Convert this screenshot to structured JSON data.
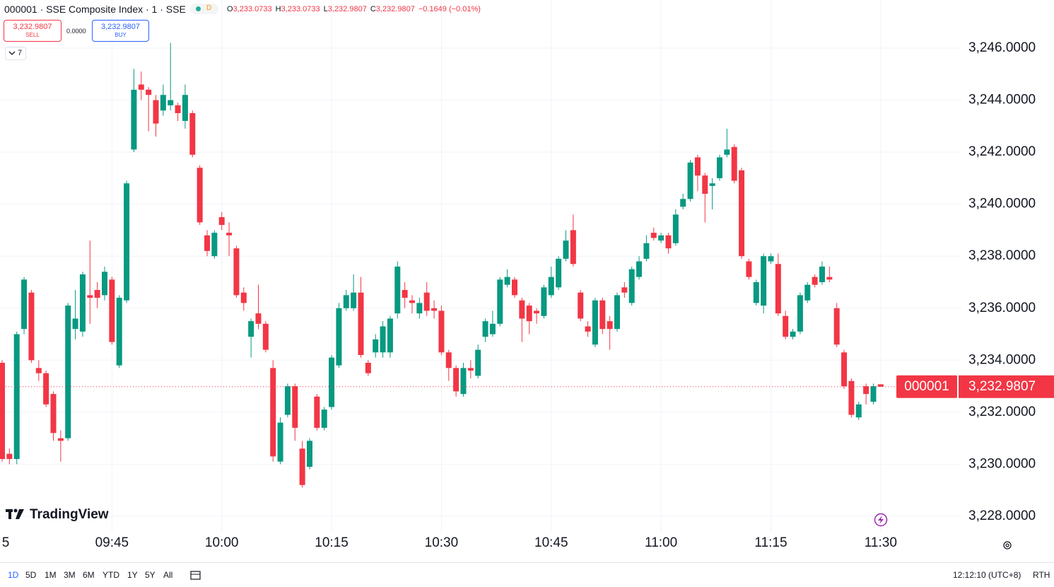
{
  "header": {
    "symbol": "000001 · SSE Composite Index · 1 · SSE",
    "market_status": "D",
    "ohlc": [
      {
        "key": "O",
        "value": "3,233.0733"
      },
      {
        "key": "H",
        "value": "3,233.0733"
      },
      {
        "key": "L",
        "value": "3,232.9807"
      },
      {
        "key": "C",
        "value": "3,232.9807"
      }
    ],
    "change": "−0.1649 (−0.01%)"
  },
  "trade": {
    "sell_price": "3,232.9807",
    "sell_label": "SELL",
    "spread": "0.0000",
    "buy_price": "3,232.9807",
    "buy_label": "BUY"
  },
  "indicators_count": "7",
  "chart_data": {
    "type": "candlestick",
    "x": [
      "09:30",
      "09:31",
      "09:32",
      "09:33",
      "09:34",
      "09:35",
      "09:36",
      "09:37",
      "09:38",
      "09:39",
      "09:40",
      "09:41",
      "09:42",
      "09:43",
      "09:44",
      "09:45",
      "09:46",
      "09:47",
      "09:48",
      "09:49",
      "09:50",
      "09:51",
      "09:52",
      "09:53",
      "09:54",
      "09:55",
      "09:56",
      "09:57",
      "09:58",
      "09:59",
      "10:00",
      "10:01",
      "10:02",
      "10:03",
      "10:04",
      "10:05",
      "10:06",
      "10:07",
      "10:08",
      "10:09",
      "10:10",
      "10:11",
      "10:12",
      "10:13",
      "10:14",
      "10:15",
      "10:16",
      "10:17",
      "10:18",
      "10:19",
      "10:20",
      "10:21",
      "10:22",
      "10:23",
      "10:24",
      "10:25",
      "10:26",
      "10:27",
      "10:28",
      "10:29",
      "10:30",
      "10:31",
      "10:32",
      "10:33",
      "10:34",
      "10:35",
      "10:36",
      "10:37",
      "10:38",
      "10:39",
      "10:40",
      "10:41",
      "10:42",
      "10:43",
      "10:44",
      "10:45",
      "10:46",
      "10:47",
      "10:48",
      "10:49",
      "10:50",
      "10:51",
      "10:52",
      "10:53",
      "10:54",
      "10:55",
      "10:56",
      "10:57",
      "10:58",
      "10:59",
      "11:00",
      "11:01",
      "11:02",
      "11:03",
      "11:04",
      "11:05",
      "11:06",
      "11:07",
      "11:08",
      "11:09",
      "11:10",
      "11:11",
      "11:12",
      "11:13",
      "11:14",
      "11:15",
      "11:16",
      "11:17",
      "11:18",
      "11:19",
      "11:20",
      "11:21",
      "11:22",
      "11:23",
      "11:24",
      "11:25",
      "11:26",
      "11:27",
      "11:28",
      "11:29",
      "11:30"
    ],
    "open": [
      3233.9,
      3230.4,
      3230.2,
      3235.2,
      3236.6,
      3233.7,
      3233.5,
      3232.7,
      3231.0,
      3231.0,
      3235.2,
      3235.1,
      3236.5,
      3236.7,
      3236.5,
      3237.1,
      3233.8,
      3236.3,
      3242.1,
      3244.6,
      3244.4,
      3244.0,
      3243.6,
      3243.8,
      3243.8,
      3243.2,
      3243.5,
      3241.4,
      3238.8,
      3238.0,
      3239.5,
      3238.9,
      3238.3,
      3236.6,
      3234.9,
      3235.8,
      3235.4,
      3233.7,
      3230.1,
      3231.9,
      3233.0,
      3230.6,
      3229.9,
      3232.6,
      3231.4,
      3232.2,
      3233.8,
      3236.0,
      3236.0,
      3236.6,
      3233.9,
      3234.3,
      3234.3,
      3234.3,
      3235.8,
      3236.7,
      3236.3,
      3235.8,
      3236.6,
      3236.0,
      3235.9,
      3234.3,
      3233.7,
      3232.7,
      3233.7,
      3233.4,
      3234.9,
      3235.0,
      3235.4,
      3236.9,
      3237.1,
      3236.3,
      3236.1,
      3235.9,
      3235.7,
      3236.5,
      3236.8,
      3237.9,
      3239.0,
      3236.6,
      3235.3,
      3234.6,
      3236.3,
      3235.5,
      3235.2,
      3236.8,
      3236.2,
      3237.2,
      3237.9,
      3238.9,
      3238.6,
      3238.8,
      3238.5,
      3239.9,
      3240.2,
      3241.8,
      3241.1,
      3240.7,
      3241.0,
      3241.9,
      3242.2,
      3241.3,
      3237.8,
      3236.2,
      3236.1,
      3237.8,
      3237.7,
      3235.7,
      3234.9,
      3235.1,
      3236.3,
      3237.2,
      3237.0,
      3237.2,
      3236.0,
      3234.3,
      3233.2,
      3231.8,
      3233.0,
      3232.4,
      3233.0733
    ],
    "high": [
      3234.0,
      3230.6,
      3235.1,
      3237.2,
      3236.7,
      3234.0,
      3233.6,
      3232.8,
      3231.3,
      3236.2,
      3236.7,
      3237.4,
      3238.6,
      3237.0,
      3237.6,
      3237.2,
      3236.5,
      3240.9,
      3245.2,
      3245.1,
      3244.5,
      3244.2,
      3244.6,
      3246.2,
      3243.9,
      3244.6,
      3243.6,
      3241.5,
      3239.0,
      3239.0,
      3239.7,
      3239.3,
      3238.4,
      3236.8,
      3235.6,
      3236.9,
      3235.5,
      3234.0,
      3231.8,
      3233.1,
      3233.1,
      3230.9,
      3231.0,
      3232.7,
      3232.2,
      3234.2,
      3236.2,
      3236.7,
      3237.3,
      3237.2,
      3234.0,
      3235.0,
      3235.5,
      3235.7,
      3237.8,
      3237.0,
      3236.5,
      3236.4,
      3237.0,
      3236.3,
      3236.1,
      3234.4,
      3233.8,
      3233.9,
      3234.0,
      3234.6,
      3235.6,
      3235.9,
      3237.2,
      3237.5,
      3237.2,
      3236.4,
      3236.2,
      3236.0,
      3236.9,
      3237.6,
      3238.0,
      3239.0,
      3239.6,
      3236.7,
      3235.5,
      3236.4,
      3236.4,
      3235.7,
      3236.6,
      3237.0,
      3237.6,
      3238.0,
      3238.8,
      3239.1,
      3238.9,
      3238.9,
      3239.8,
      3240.4,
      3241.7,
      3241.9,
      3241.2,
      3241.0,
      3241.9,
      3242.9,
      3242.3,
      3241.4,
      3237.9,
      3237.1,
      3238.1,
      3238.1,
      3238.1,
      3235.9,
      3235.2,
      3236.6,
      3237.0,
      3237.3,
      3237.8,
      3237.6,
      3236.2,
      3234.4,
      3233.3,
      3232.4,
      3233.1,
      3233.1,
      3233.0733
    ],
    "low": [
      3230.1,
      3230.0,
      3230.0,
      3235.0,
      3233.9,
      3233.2,
      3232.2,
      3230.9,
      3230.1,
      3230.9,
      3234.8,
      3234.9,
      3235.4,
      3236.0,
      3236.3,
      3234.6,
      3233.7,
      3236.2,
      3242.0,
      3244.0,
      3242.8,
      3242.6,
      3243.4,
      3243.6,
      3243.2,
      3242.9,
      3241.8,
      3239.2,
      3238.0,
      3237.9,
      3239.0,
      3238.0,
      3236.4,
      3235.9,
      3234.1,
      3235.2,
      3234.3,
      3230.1,
      3230.0,
      3231.8,
      3230.9,
      3229.1,
      3229.8,
      3231.3,
      3231.3,
      3232.1,
      3233.7,
      3235.9,
      3235.9,
      3234.1,
      3233.4,
      3234.1,
      3234.1,
      3234.1,
      3235.6,
      3236.0,
      3235.8,
      3235.6,
      3235.7,
      3235.6,
      3234.2,
      3233.2,
      3232.6,
      3232.6,
      3233.3,
      3233.3,
      3234.7,
      3234.9,
      3235.3,
      3236.8,
      3236.4,
      3234.7,
      3235.0,
      3235.4,
      3235.6,
      3236.4,
      3236.7,
      3237.8,
      3237.6,
      3235.5,
      3234.9,
      3234.5,
      3235.0,
      3234.4,
      3235.1,
      3236.4,
      3236.1,
      3237.1,
      3237.8,
      3238.6,
      3238.5,
      3238.1,
      3238.4,
      3239.8,
      3240.1,
      3240.5,
      3239.3,
      3239.8,
      3240.9,
      3241.8,
      3240.8,
      3237.9,
      3237.1,
      3236.1,
      3235.8,
      3237.7,
      3235.7,
      3234.8,
      3234.8,
      3235.0,
      3236.2,
      3236.8,
      3236.9,
      3237.0,
      3234.5,
      3232.9,
      3231.8,
      3231.7,
      3232.3,
      3232.3,
      3232.9807
    ],
    "close": [
      3230.2,
      3230.2,
      3235.0,
      3237.1,
      3234.0,
      3233.5,
      3232.3,
      3231.2,
      3230.9,
      3236.1,
      3235.6,
      3237.3,
      3236.4,
      3236.4,
      3237.4,
      3234.7,
      3236.4,
      3240.8,
      3244.4,
      3244.4,
      3244.2,
      3243.1,
      3244.2,
      3244.0,
      3243.5,
      3244.2,
      3241.9,
      3239.3,
      3238.2,
      3238.9,
      3239.2,
      3238.8,
      3236.5,
      3236.2,
      3235.5,
      3235.4,
      3234.4,
      3230.3,
      3231.6,
      3233.0,
      3231.4,
      3229.2,
      3230.9,
      3231.4,
      3232.1,
      3234.1,
      3236.0,
      3236.5,
      3236.6,
      3234.2,
      3233.5,
      3234.8,
      3235.3,
      3235.6,
      3237.6,
      3236.4,
      3236.2,
      3236.2,
      3235.9,
      3235.9,
      3234.3,
      3233.7,
      3232.8,
      3233.7,
      3233.6,
      3234.4,
      3235.5,
      3235.4,
      3237.1,
      3237.2,
      3236.5,
      3235.6,
      3235.5,
      3235.8,
      3236.8,
      3237.2,
      3237.9,
      3238.6,
      3237.7,
      3235.6,
      3235.1,
      3236.3,
      3235.2,
      3235.2,
      3236.5,
      3236.6,
      3237.5,
      3237.8,
      3238.5,
      3238.7,
      3238.8,
      3238.3,
      3239.6,
      3240.2,
      3241.6,
      3241.1,
      3240.4,
      3240.8,
      3241.8,
      3242.1,
      3240.9,
      3238.0,
      3237.2,
      3237.0,
      3238.0,
      3238.0,
      3235.8,
      3234.9,
      3235.1,
      3236.5,
      3236.9,
      3236.9,
      3237.6,
      3237.1,
      3234.6,
      3233.0,
      3231.9,
      3232.3,
      3232.7,
      3233.0,
      3232.9807
    ],
    "up_color": "#089981",
    "down_color": "#f23645",
    "ylim": [
      3227.4,
      3247.85
    ],
    "yticks": [
      {
        "value": 3228,
        "label": "3,228.0000"
      },
      {
        "value": 3230,
        "label": "3,230.0000"
      },
      {
        "value": 3232,
        "label": "3,232.0000"
      },
      {
        "value": 3234,
        "label": "3,234.0000"
      },
      {
        "value": 3236,
        "label": "3,236.0000"
      },
      {
        "value": 3238,
        "label": "3,238.0000"
      },
      {
        "value": 3240,
        "label": "3,240.0000"
      },
      {
        "value": 3242,
        "label": "3,242.0000"
      },
      {
        "value": 3244,
        "label": "3,244.0000"
      },
      {
        "value": 3246,
        "label": "3,246.0000"
      }
    ],
    "xticks": [
      {
        "value": "09:30",
        "label": "5"
      },
      "09:45",
      "10:00",
      "10:15",
      "10:30",
      "10:45",
      "11:00",
      "11:15",
      "11:30"
    ],
    "grid": true,
    "symbol_tag": "000001",
    "last_price": {
      "value": 3232.9807,
      "label": "3,232.9807"
    },
    "logo": "TradingView"
  },
  "footer": {
    "ranges": [
      "1D",
      "5D",
      "1M",
      "3M",
      "6M",
      "YTD",
      "1Y",
      "5Y",
      "All"
    ],
    "active_range": "1D",
    "clock": "12:12:10 (UTC+8)",
    "session": "RTH"
  }
}
